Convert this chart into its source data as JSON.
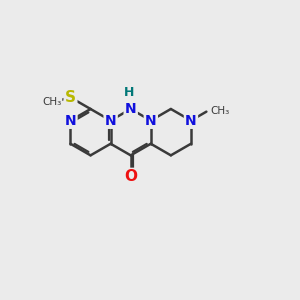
{
  "bg_color": "#ebebeb",
  "bond_color": "#3a3a3a",
  "bond_lw": 1.8,
  "atom_colors": {
    "N": "#1010dd",
    "O": "#ee1111",
    "S": "#b8b800",
    "H": "#007777",
    "C": "#3a3a3a"
  },
  "figsize": [
    3.0,
    3.0
  ],
  "dpi": 100,
  "bl": 0.82
}
